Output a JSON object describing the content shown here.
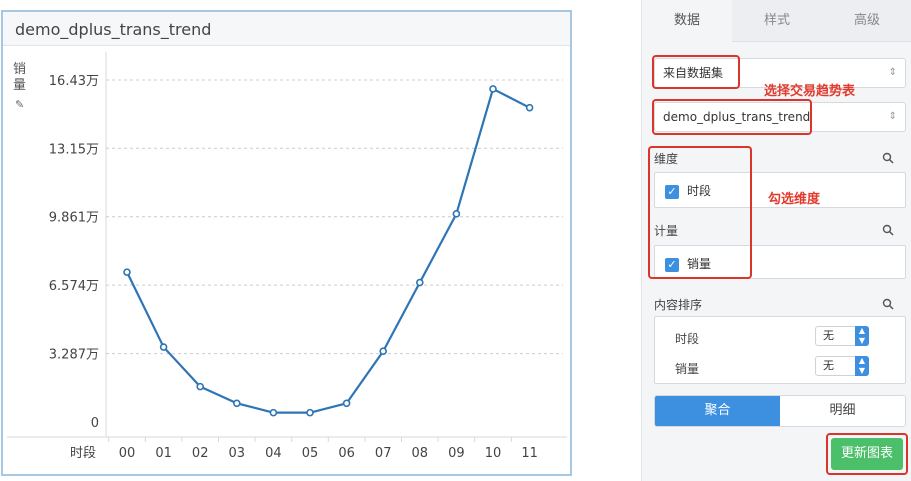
{
  "chart": {
    "title": "demo_dplus_trans_trend",
    "ylabel_chars": [
      "销",
      "量"
    ],
    "pencil_icon": "pencil-icon",
    "xlabel": "时段"
  },
  "chart_data": {
    "type": "line",
    "title": "demo_dplus_trans_trend",
    "xlabel": "时段",
    "ylabel": "销量",
    "x": [
      "00",
      "01",
      "02",
      "03",
      "04",
      "05",
      "06",
      "07",
      "08",
      "09",
      "10",
      "11"
    ],
    "y_tick_labels": [
      "0",
      "3.287万",
      "6.574万",
      "9.861万",
      "13.15万",
      "16.43万"
    ],
    "y_ticks": [
      0,
      3.287,
      6.574,
      9.861,
      13.15,
      16.43
    ],
    "ylim": [
      0,
      16.43
    ],
    "series": [
      {
        "values": [
          7.2,
          3.6,
          1.7,
          0.9,
          0.45,
          0.45,
          0.9,
          3.4,
          6.7,
          10.0,
          16.0,
          15.1
        ]
      }
    ],
    "color": "#2f74b5",
    "grid": true
  },
  "settings": {
    "tabs": [
      "数据",
      "样式",
      "高级"
    ],
    "active_tab": "数据",
    "source_select": "来自数据集",
    "dataset_select": "demo_dplus_trans_trend",
    "annotation_dataset": "选择交易趋势表",
    "dimension_title": "维度",
    "dimension_field": "时段",
    "annotation_dimension": "勾选维度",
    "measure_title": "计量",
    "measure_field": "销量",
    "sort_title": "内容排序",
    "sort_rows": [
      {
        "label": "时段",
        "value": "无"
      },
      {
        "label": "销量",
        "value": "无"
      }
    ],
    "segments": [
      "聚合",
      "明细"
    ],
    "active_segment": "聚合",
    "update_button": "更新图表",
    "accent_color": "#3d8fe0",
    "highlight_color": "#d9352c",
    "button_color": "#4cbf6a"
  }
}
